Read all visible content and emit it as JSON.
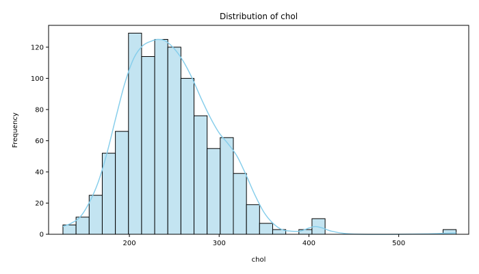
{
  "chart_data": {
    "type": "bar",
    "title": "Distribution of chol",
    "xlabel": "chol",
    "ylabel": "Frequency",
    "xlim": [
      110,
      578
    ],
    "ylim": [
      0,
      134
    ],
    "x_ticks": [
      200,
      300,
      400,
      500
    ],
    "y_ticks": [
      0,
      20,
      40,
      60,
      80,
      100,
      120
    ],
    "bins": {
      "edges": [
        126,
        140.6,
        155.2,
        169.8,
        184.4,
        199,
        213.6,
        228.2,
        242.8,
        257.4,
        272,
        286.6,
        301.2,
        315.8,
        330.4,
        345,
        359.6,
        374.2,
        388.8,
        403.4,
        418,
        432.6,
        447.2,
        461.8,
        476.4,
        491,
        505.6,
        520.2,
        534.8,
        549.4,
        564
      ],
      "counts": [
        6,
        11,
        25,
        52,
        66,
        129,
        114,
        125,
        120,
        100,
        76,
        55,
        62,
        39,
        19,
        7,
        3,
        0,
        3,
        10,
        0,
        0,
        0,
        0,
        0,
        0,
        0,
        0,
        0,
        3
      ]
    },
    "kde": {
      "x": [
        126,
        135,
        145,
        155,
        165,
        175,
        185,
        195,
        205,
        215,
        225,
        232,
        240,
        250,
        260,
        270,
        280,
        290,
        300,
        310,
        320,
        330,
        340,
        350,
        360,
        370,
        380,
        390,
        400,
        407,
        415,
        425,
        440,
        460,
        500,
        530,
        550,
        564
      ],
      "y": [
        5,
        7,
        11,
        20,
        33,
        52,
        75,
        97,
        113,
        121,
        124,
        125,
        124,
        119,
        111,
        100,
        87,
        75,
        65,
        58,
        50,
        38,
        25,
        14,
        7,
        3,
        2,
        2,
        4,
        5,
        4,
        2,
        0.5,
        0,
        0,
        0.2,
        0.6,
        0.8
      ]
    },
    "colors": {
      "bar_fill": "#c3e4f1",
      "bar_edge": "#000000",
      "kde_line": "#87ceeb"
    },
    "grid": false,
    "legend": "none"
  }
}
